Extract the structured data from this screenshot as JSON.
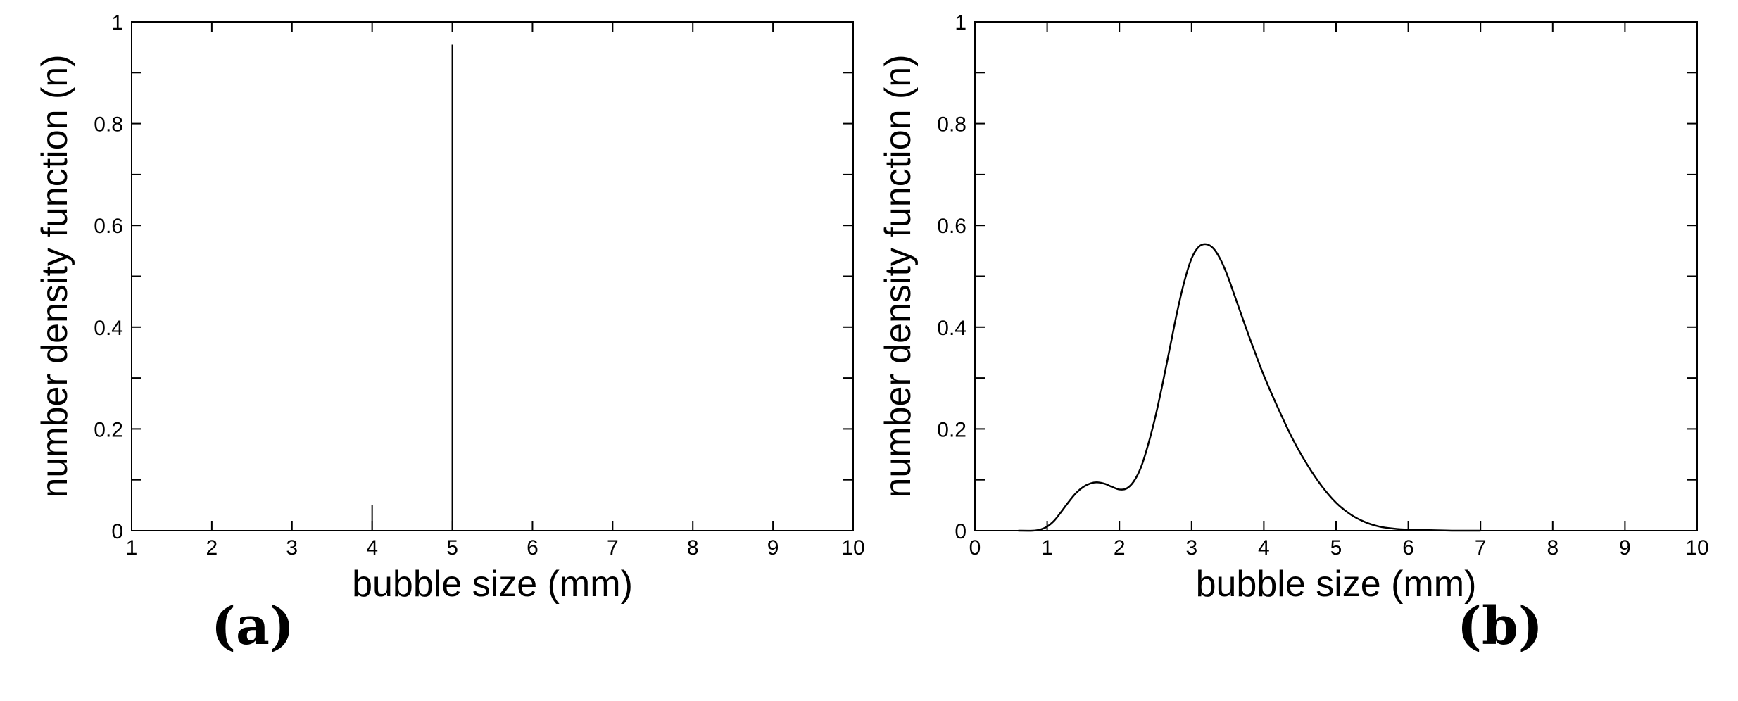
{
  "chart_data": [
    {
      "type": "bar",
      "panel_label": "(a)",
      "title": "",
      "xlabel": "bubble size (mm)",
      "ylabel": "number density function (n)",
      "xlim": [
        1,
        10
      ],
      "ylim": [
        0,
        1
      ],
      "xticks": [
        1,
        2,
        3,
        4,
        5,
        6,
        7,
        8,
        9,
        10
      ],
      "yticks": [
        0,
        0.2,
        0.4,
        0.6,
        0.8,
        1
      ],
      "ytick_labels": [
        "0",
        "0.2",
        "0.4",
        "0.6",
        "0.8",
        "1"
      ],
      "grid": false,
      "x": [
        4,
        5
      ],
      "values": [
        0.05,
        0.955
      ]
    },
    {
      "type": "line",
      "panel_label": "(b)",
      "title": "",
      "xlabel": "bubble size (mm)",
      "ylabel": "number density function (n)",
      "xlim": [
        0,
        10
      ],
      "ylim": [
        0,
        1
      ],
      "xticks": [
        0,
        1,
        2,
        3,
        4,
        5,
        6,
        7,
        8,
        9,
        10
      ],
      "yticks": [
        0,
        0.2,
        0.4,
        0.6,
        0.8,
        1
      ],
      "ytick_labels": [
        "0",
        "0.2",
        "0.4",
        "0.6",
        "0.8",
        "1"
      ],
      "grid": false,
      "x": [
        0.6,
        0.8,
        0.9,
        1.0,
        1.1,
        1.2,
        1.3,
        1.4,
        1.5,
        1.6,
        1.7,
        1.8,
        1.9,
        2.0,
        2.1,
        2.2,
        2.3,
        2.4,
        2.5,
        2.6,
        2.7,
        2.8,
        2.9,
        3.0,
        3.1,
        3.2,
        3.3,
        3.4,
        3.5,
        3.6,
        3.8,
        4.0,
        4.2,
        4.4,
        4.6,
        4.8,
        5.0,
        5.2,
        5.4,
        5.6,
        5.8,
        6.0,
        6.3,
        6.6,
        7.0
      ],
      "y": [
        0.0,
        0.0,
        0.002,
        0.008,
        0.02,
        0.038,
        0.057,
        0.074,
        0.086,
        0.093,
        0.095,
        0.092,
        0.086,
        0.081,
        0.083,
        0.097,
        0.125,
        0.17,
        0.225,
        0.29,
        0.36,
        0.43,
        0.49,
        0.535,
        0.558,
        0.563,
        0.555,
        0.533,
        0.5,
        0.46,
        0.38,
        0.305,
        0.24,
        0.18,
        0.13,
        0.088,
        0.055,
        0.032,
        0.017,
        0.008,
        0.004,
        0.002,
        0.001,
        0.0,
        0.0
      ]
    }
  ]
}
